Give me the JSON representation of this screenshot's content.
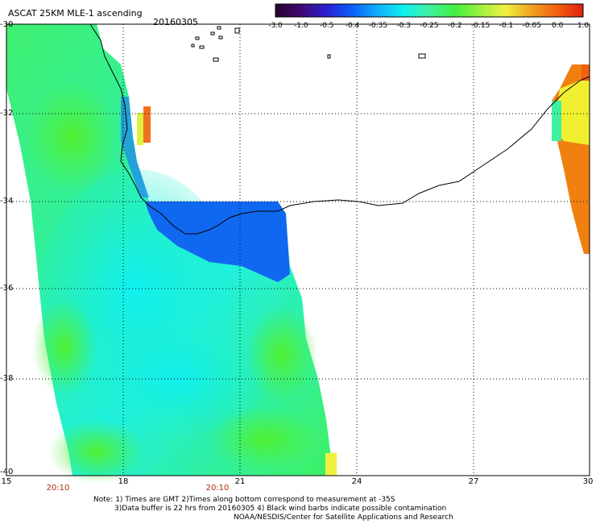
{
  "header": {
    "title": "ASCAT 25KM MLE-1 ascending",
    "date": "20160305"
  },
  "colorbar": {
    "ticks": [
      "-3.0",
      "-1.0",
      "-0.5",
      "-0.4",
      "-0.35",
      "-0.3",
      "-0.25",
      "-0.2",
      "-0.15",
      "-0.1",
      "-0.05",
      "0.0",
      "1.0"
    ],
    "colors": [
      "#2a0030",
      "#400a70",
      "#2a20d0",
      "#0a60f8",
      "#10b0f8",
      "#10f0f0",
      "#40f0a0",
      "#40f040",
      "#a0f040",
      "#f0f040",
      "#f0a020",
      "#f06010",
      "#e02010"
    ]
  },
  "axes": {
    "lat_labels": [
      "-30",
      "-32",
      "-34",
      "-36",
      "-38",
      "-40"
    ],
    "lon_labels": [
      "15",
      "18",
      "21",
      "24",
      "27",
      "30"
    ]
  },
  "times": [
    "20:10",
    "20:10"
  ],
  "notes": [
    "Note: 1) Times are GMT 2)Times along bottom correspond to measurement at -35S",
    "3)Data buffer is 22 hrs from 20160305 4) Black wind barbs indicate possible contamination",
    "NOAA/NESDIS/Center for Satellite Applications and Research"
  ]
}
